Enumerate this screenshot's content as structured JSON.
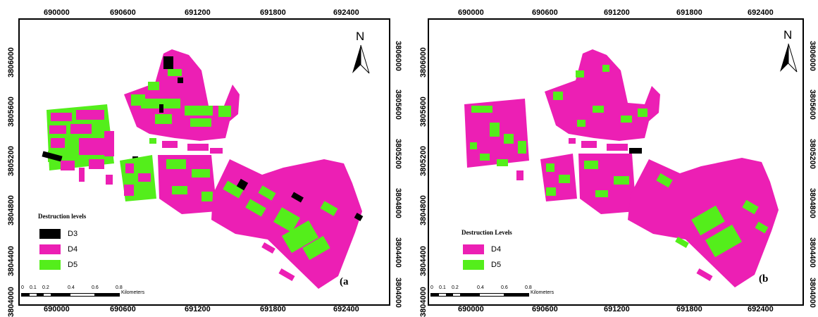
{
  "colors": {
    "D3": "#000000",
    "D4": "#ec1fb4",
    "D5": "#54ee1b",
    "frame": "#000000"
  },
  "panels": [
    {
      "id": "a",
      "legend_title": "Destruction levels",
      "legend": [
        {
          "label": "D3",
          "color": "#000000"
        },
        {
          "label": "D4",
          "color": "#ec1fb4"
        },
        {
          "label": "D5",
          "color": "#54ee1b"
        }
      ],
      "panel_label": "(a",
      "north": "N",
      "x_ticks": [
        "690000",
        "690600",
        "691200",
        "691800",
        "692400"
      ],
      "y_ticks": [
        "3806000",
        "3805600",
        "3805200",
        "3804800",
        "3804400",
        "3804000"
      ],
      "scale_ticks": [
        "0",
        "0.1",
        "0.2",
        "0.4",
        "0.6",
        "0.8"
      ],
      "scale_unit": "Kilometers"
    },
    {
      "id": "b",
      "legend_title": "Destruction Levels",
      "legend": [
        {
          "label": "D4",
          "color": "#ec1fb4"
        },
        {
          "label": "D5",
          "color": "#54ee1b"
        }
      ],
      "panel_label": "(b",
      "north": "N",
      "x_ticks": [
        "690000",
        "690600",
        "691200",
        "691800",
        "692400"
      ],
      "y_ticks": [
        "3806000",
        "3805600",
        "3805200",
        "3804800",
        "3804400",
        "3804000"
      ],
      "scale_ticks": [
        "0",
        "0.1",
        "0.2",
        "0.4",
        "0.6",
        "0.8"
      ],
      "scale_unit": "Kilometers"
    }
  ]
}
